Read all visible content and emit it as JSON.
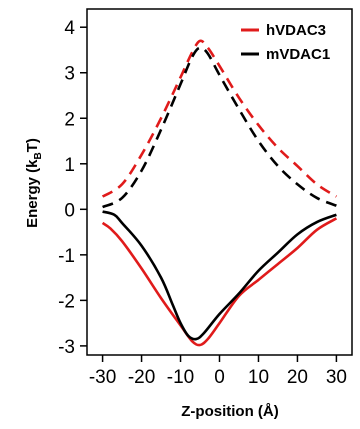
{
  "chart_data": {
    "type": "line",
    "xlabel": "Z-position (Å)",
    "ylabel_main": "Energy (k",
    "ylabel_sub": "B",
    "ylabel_end": "T)",
    "xlim": [
      -34,
      34
    ],
    "ylim": [
      -3.2,
      4.4
    ],
    "x_ticks": [
      -30,
      -20,
      -10,
      0,
      10,
      20,
      30
    ],
    "x_tick_labels": [
      "-30",
      "-20",
      "-10",
      "0",
      "10",
      "20",
      "30"
    ],
    "y_ticks": [
      -3,
      -2,
      -1,
      0,
      1,
      2,
      3,
      4
    ],
    "y_tick_labels": [
      "-3",
      "-2",
      "-1",
      "0",
      "1",
      "2",
      "3",
      "4"
    ],
    "legend_position": "top-right",
    "colors": {
      "hVDAC3": "#e01b1b",
      "mVDAC1": "#000000"
    },
    "series": [
      {
        "name": "hVDAC3",
        "style": "dashed",
        "x": [
          -30,
          -25,
          -20,
          -15,
          -10,
          -7,
          -5,
          -3,
          0,
          5,
          10,
          15,
          20,
          25,
          30
        ],
        "y": [
          0.28,
          0.55,
          1.2,
          2.0,
          2.9,
          3.45,
          3.7,
          3.55,
          3.15,
          2.45,
          1.85,
          1.35,
          0.95,
          0.55,
          0.28
        ]
      },
      {
        "name": "hVDAC3",
        "style": "solid",
        "x": [
          -30,
          -28,
          -25,
          -20,
          -15,
          -10,
          -7,
          -5,
          -3,
          0,
          5,
          10,
          15,
          20,
          25,
          30
        ],
        "y": [
          -0.3,
          -0.42,
          -0.7,
          -1.3,
          -1.95,
          -2.55,
          -2.9,
          -2.98,
          -2.85,
          -2.5,
          -1.9,
          -1.55,
          -1.2,
          -0.85,
          -0.45,
          -0.2
        ]
      },
      {
        "name": "mVDAC1",
        "style": "dashed",
        "x": [
          -30,
          -25,
          -20,
          -15,
          -10,
          -7,
          -5,
          -3,
          0,
          5,
          10,
          15,
          20,
          25,
          30
        ],
        "y": [
          0.05,
          0.25,
          0.85,
          1.75,
          2.75,
          3.35,
          3.55,
          3.42,
          2.95,
          2.2,
          1.5,
          0.95,
          0.55,
          0.25,
          0.08
        ]
      },
      {
        "name": "mVDAC1",
        "style": "solid",
        "x": [
          -30,
          -27,
          -25,
          -20,
          -15,
          -12,
          -10,
          -8,
          -6,
          -4,
          0,
          5,
          10,
          15,
          20,
          25,
          30
        ],
        "y": [
          -0.05,
          -0.12,
          -0.3,
          -0.8,
          -1.5,
          -2.1,
          -2.5,
          -2.78,
          -2.85,
          -2.72,
          -2.3,
          -1.85,
          -1.35,
          -0.95,
          -0.55,
          -0.28,
          -0.12
        ]
      }
    ],
    "legend": [
      {
        "label": "hVDAC3",
        "color": "#e01b1b"
      },
      {
        "label": "mVDAC1",
        "color": "#000000"
      }
    ]
  }
}
